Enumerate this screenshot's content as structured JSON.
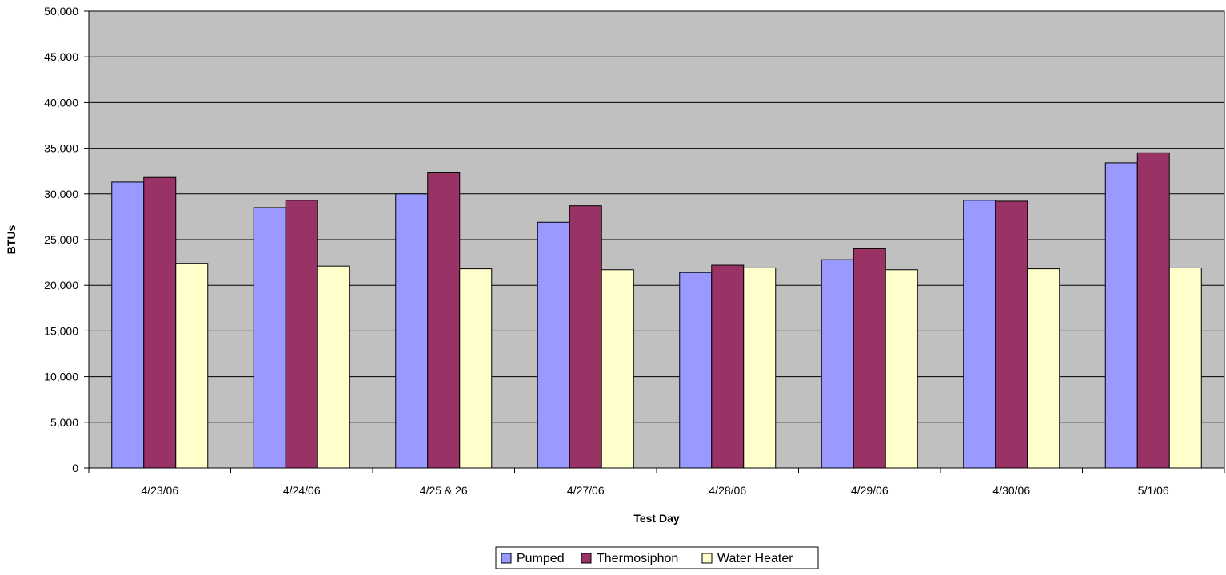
{
  "chart_data": {
    "type": "bar",
    "title": "",
    "xlabel": "Test Day",
    "ylabel": "BTUs",
    "ylim": [
      0,
      50000
    ],
    "y_ticks": [
      "0",
      "5,000",
      "10,000",
      "15,000",
      "20,000",
      "25,000",
      "30,000",
      "35,000",
      "40,000",
      "45,000",
      "50,000"
    ],
    "y_tick_values": [
      0,
      5000,
      10000,
      15000,
      20000,
      25000,
      30000,
      35000,
      40000,
      45000,
      50000
    ],
    "grid": true,
    "legend_position": "bottom-center",
    "plot_background": "#c0c0c0",
    "categories": [
      "4/23/06",
      "4/24/06",
      "4/25 & 26",
      "4/27/06",
      "4/28/06",
      "4/29/06",
      "4/30/06",
      "5/1/06"
    ],
    "series": [
      {
        "name": "Pumped",
        "color": "#9999ff",
        "values": [
          31300,
          28500,
          30000,
          26900,
          21400,
          22800,
          29300,
          33400
        ]
      },
      {
        "name": "Thermosiphon",
        "color": "#993366",
        "values": [
          31800,
          29300,
          32300,
          28700,
          22200,
          24000,
          29200,
          34500
        ]
      },
      {
        "name": "Water Heater",
        "color": "#ffffcc",
        "values": [
          22400,
          22100,
          21800,
          21700,
          21900,
          21700,
          21800,
          21900
        ]
      }
    ]
  }
}
